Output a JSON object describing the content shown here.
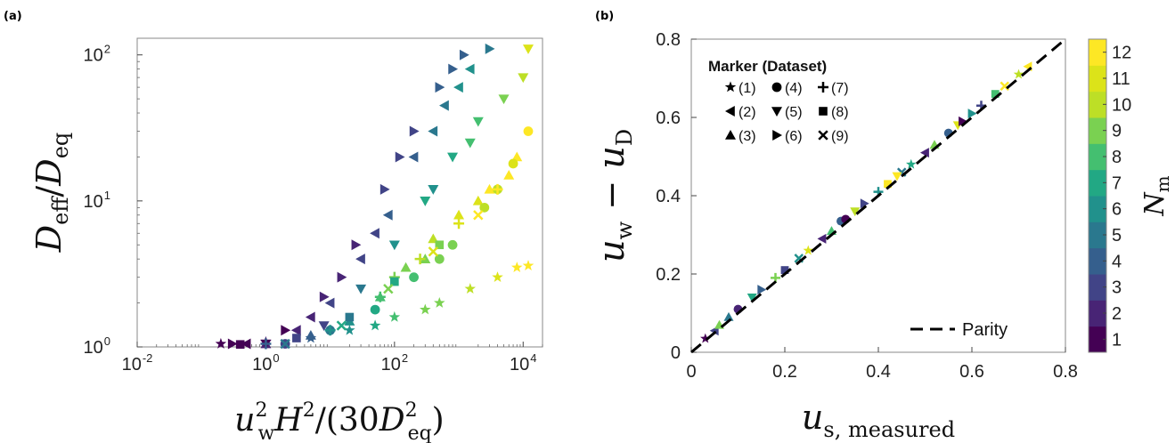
{
  "chart_data": [
    {
      "panel": "(a)",
      "type": "scatter",
      "xlabel": "u_w^2 H^2/(30 D_eq^2)",
      "ylabel": "D_eff / D_eq",
      "xscale": "log",
      "yscale": "log",
      "xlim": [
        0.01,
        20000
      ],
      "ylim": [
        1,
        130
      ],
      "xticks": [
        0.01,
        1,
        100,
        10000
      ],
      "xtick_labels": [
        {
          "base": "10",
          "exp": "-2"
        },
        {
          "base": "10",
          "exp": "0"
        },
        {
          "base": "10",
          "exp": "2"
        },
        {
          "base": "10",
          "exp": "4"
        }
      ],
      "yticks": [
        1,
        10,
        100
      ],
      "ytick_labels": [
        {
          "base": "10",
          "exp": "0"
        },
        {
          "base": "10",
          "exp": "1"
        },
        {
          "base": "10",
          "exp": "2"
        }
      ],
      "color_by": "N_m",
      "series": [
        {
          "marker": "star",
          "dataset": "(1)",
          "points": [
            [
              0.2,
              1.05,
              1
            ],
            [
              1,
              1.08,
              2
            ],
            [
              5,
              1.15,
              4
            ],
            [
              20,
              1.3,
              6
            ],
            [
              100,
              1.6,
              8
            ],
            [
              500,
              2.0,
              9
            ],
            [
              1500,
              2.5,
              10
            ],
            [
              4000,
              3.0,
              11
            ],
            [
              8000,
              3.5,
              12
            ],
            [
              12000,
              3.6,
              12
            ],
            [
              50,
              1.4,
              7
            ],
            [
              300,
              1.8,
              9
            ]
          ]
        },
        {
          "marker": "triangle-left",
          "dataset": "(2)",
          "points": [
            [
              0.5,
              1.05,
              1
            ],
            [
              3,
              1.3,
              2
            ],
            [
              10,
              2,
              3
            ],
            [
              30,
              4,
              3
            ],
            [
              80,
              8,
              4
            ],
            [
              200,
              20,
              4
            ],
            [
              600,
              45,
              5
            ],
            [
              1500,
              80,
              6
            ],
            [
              5,
              1.6,
              2
            ],
            [
              50,
              6,
              3
            ],
            [
              400,
              30,
              5
            ],
            [
              1000,
              60,
              6
            ]
          ]
        },
        {
          "marker": "triangle-up",
          "dataset": "(3)",
          "points": [
            [
              1,
              1.05,
              2
            ],
            [
              5,
              1.2,
              4
            ],
            [
              20,
              1.5,
              6
            ],
            [
              60,
              2.2,
              8
            ],
            [
              150,
              3.5,
              9
            ],
            [
              400,
              5.5,
              10
            ],
            [
              1000,
              8,
              11
            ],
            [
              3000,
              12,
              12
            ],
            [
              8000,
              20,
              12
            ],
            [
              300,
              4,
              9
            ],
            [
              2000,
              10,
              11
            ],
            [
              6000,
              15,
              12
            ]
          ]
        },
        {
          "marker": "circle",
          "dataset": "(4)",
          "points": [
            [
              2,
              1.05,
              3
            ],
            [
              10,
              1.3,
              5
            ],
            [
              50,
              1.8,
              7
            ],
            [
              200,
              3,
              8
            ],
            [
              800,
              5,
              9
            ],
            [
              2500,
              9,
              10
            ],
            [
              7000,
              18,
              11
            ],
            [
              12000,
              30,
              12
            ],
            [
              500,
              4,
              9
            ],
            [
              4000,
              12,
              10
            ]
          ]
        },
        {
          "marker": "triangle-down",
          "dataset": "(5)",
          "points": [
            [
              1,
              1.05,
              1
            ],
            [
              8,
              1.4,
              3
            ],
            [
              30,
              2.5,
              5
            ],
            [
              100,
              5,
              6
            ],
            [
              300,
              10,
              7
            ],
            [
              800,
              20,
              7
            ],
            [
              2000,
              35,
              8
            ],
            [
              5000,
              50,
              9
            ],
            [
              10000,
              70,
              10
            ],
            [
              12000,
              110,
              11
            ],
            [
              1500,
              25,
              8
            ],
            [
              400,
              12,
              6
            ]
          ]
        },
        {
          "marker": "triangle-right",
          "dataset": "(6)",
          "points": [
            [
              0.3,
              1.05,
              1
            ],
            [
              2,
              1.3,
              1
            ],
            [
              8,
              2.2,
              2
            ],
            [
              25,
              5,
              2
            ],
            [
              70,
              12,
              3
            ],
            [
              200,
              30,
              3
            ],
            [
              500,
              60,
              4
            ],
            [
              1200,
              100,
              4
            ],
            [
              3000,
              110,
              5
            ],
            [
              15,
              3,
              2
            ],
            [
              120,
              20,
              3
            ],
            [
              800,
              80,
              4
            ]
          ]
        },
        {
          "marker": "plus",
          "dataset": "(7)",
          "points": [
            [
              1,
              1.05,
              4
            ],
            [
              10,
              1.3,
              6
            ],
            [
              60,
              2.2,
              8
            ],
            [
              250,
              4,
              10
            ],
            [
              1000,
              7,
              11
            ],
            [
              4000,
              12,
              12
            ],
            [
              100,
              3,
              9
            ]
          ]
        },
        {
          "marker": "square",
          "dataset": "(8)",
          "points": [
            [
              0.4,
              1.04,
              1
            ],
            [
              3,
              1.15,
              3
            ],
            [
              20,
              1.6,
              5
            ],
            [
              100,
              2.8,
              7
            ],
            [
              500,
              5,
              9
            ]
          ]
        },
        {
          "marker": "cross",
          "dataset": "(9)",
          "points": [
            [
              2,
              1.05,
              5
            ],
            [
              15,
              1.4,
              7
            ],
            [
              80,
              2.5,
              9
            ],
            [
              400,
              4.5,
              11
            ],
            [
              2000,
              8,
              12
            ]
          ]
        }
      ]
    },
    {
      "panel": "(b)",
      "type": "scatter",
      "xlabel": "u_s, measured",
      "ylabel": "u_w - u_D",
      "xlim": [
        0,
        0.8
      ],
      "ylim": [
        0,
        0.8
      ],
      "xticks": [
        0,
        0.2,
        0.4,
        0.6,
        0.8
      ],
      "xtick_labels": [
        "0",
        "0.2",
        "0.4",
        "0.6",
        "0.8"
      ],
      "yticks": [
        0,
        0.2,
        0.4,
        0.6,
        0.8
      ],
      "ytick_labels": [
        "0",
        "0.2",
        "0.4",
        "0.6",
        "0.8"
      ],
      "parity_line": {
        "x": [
          0,
          0.8
        ],
        "y": [
          0,
          0.8
        ],
        "label": "Parity"
      },
      "legend": {
        "title": "Marker (Dataset)",
        "items": [
          {
            "marker": "star",
            "label": "(1)"
          },
          {
            "marker": "circle",
            "label": "(4)"
          },
          {
            "marker": "plus",
            "label": "(7)"
          },
          {
            "marker": "triangle-left",
            "label": "(2)"
          },
          {
            "marker": "triangle-down",
            "label": "(5)"
          },
          {
            "marker": "square",
            "label": "(8)"
          },
          {
            "marker": "triangle-up",
            "label": "(3)"
          },
          {
            "marker": "triangle-right",
            "label": "(6)"
          },
          {
            "marker": "cross",
            "label": "(9)"
          }
        ]
      },
      "colorbar": {
        "label": "N_m",
        "ticks": [
          1,
          2,
          3,
          4,
          5,
          6,
          7,
          8,
          9,
          10,
          11,
          12
        ],
        "colors": [
          "#440154",
          "#482475",
          "#414487",
          "#355f8d",
          "#2a788e",
          "#21918c",
          "#22a884",
          "#44bf70",
          "#7ad151",
          "#bddf26",
          "#dce319",
          "#fde725"
        ]
      },
      "points_summary": "points lie along parity from 0.03 to 0.73",
      "series_points": [
        [
          0.03,
          0.035,
          1
        ],
        [
          0.05,
          0.055,
          3
        ],
        [
          0.08,
          0.09,
          5
        ],
        [
          0.1,
          0.11,
          2
        ],
        [
          0.13,
          0.14,
          7
        ],
        [
          0.15,
          0.16,
          4
        ],
        [
          0.18,
          0.19,
          9
        ],
        [
          0.2,
          0.21,
          3
        ],
        [
          0.23,
          0.24,
          6
        ],
        [
          0.25,
          0.26,
          11
        ],
        [
          0.28,
          0.29,
          2
        ],
        [
          0.3,
          0.31,
          8
        ],
        [
          0.32,
          0.335,
          4
        ],
        [
          0.35,
          0.36,
          10
        ],
        [
          0.37,
          0.38,
          3
        ],
        [
          0.4,
          0.41,
          6
        ],
        [
          0.42,
          0.43,
          12
        ],
        [
          0.45,
          0.46,
          5
        ],
        [
          0.47,
          0.48,
          7
        ],
        [
          0.5,
          0.51,
          2
        ],
        [
          0.52,
          0.53,
          9
        ],
        [
          0.55,
          0.56,
          4
        ],
        [
          0.57,
          0.58,
          11
        ],
        [
          0.6,
          0.61,
          6
        ],
        [
          0.62,
          0.63,
          3
        ],
        [
          0.65,
          0.66,
          8
        ],
        [
          0.67,
          0.68,
          12
        ],
        [
          0.7,
          0.71,
          10
        ],
        [
          0.72,
          0.73,
          12
        ],
        [
          0.06,
          0.07,
          9
        ],
        [
          0.33,
          0.34,
          1
        ],
        [
          0.44,
          0.45,
          12
        ],
        [
          0.58,
          0.59,
          1
        ]
      ]
    }
  ]
}
